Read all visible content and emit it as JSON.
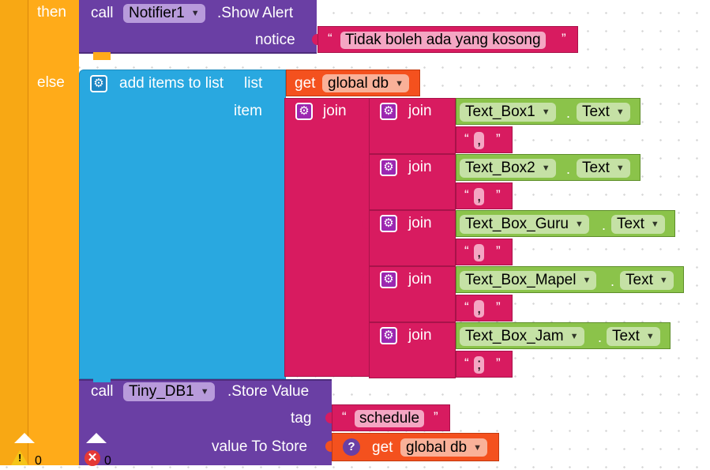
{
  "workspace": {
    "then_label": "then",
    "else_label": "else",
    "warnings_count": "0",
    "errors_count": "0"
  },
  "notifier": {
    "call_label": "call",
    "component": "Notifier1",
    "method": ".Show Alert",
    "notice_label": "notice",
    "notice_text": "Tidak boleh ada yang kosong"
  },
  "add_items": {
    "label": "add items to list",
    "list_label": "list",
    "item_label": "item",
    "get_label": "get",
    "variable": "global db"
  },
  "outer_join": {
    "label": "join"
  },
  "rows": [
    {
      "join": "join",
      "component": "Text_Box1",
      "property": "Text",
      "separator": ",",
      "dot": "."
    },
    {
      "join": "join",
      "component": "Text_Box2",
      "property": "Text",
      "separator": ",",
      "dot": "."
    },
    {
      "join": "join",
      "component": "Text_Box_Guru",
      "property": "Text",
      "separator": ",",
      "dot": "."
    },
    {
      "join": "join",
      "component": "Text_Box_Mapel",
      "property": "Text",
      "separator": ",",
      "dot": "."
    },
    {
      "join": "join",
      "component": "Text_Box_Jam",
      "property": "Text",
      "separator": ";",
      "dot": "."
    }
  ],
  "store": {
    "call_label": "call",
    "component": "Tiny_DB1",
    "method": ".Store Value",
    "tag_label": "tag",
    "tag_value": "schedule",
    "value_label": "value To Store",
    "get_label": "get",
    "variable": "global db"
  },
  "colors": {
    "control": "#ffab19",
    "component": "#6a3fa4",
    "list": "#29a8e0",
    "text": "#d81b60",
    "getter": "#f4511e",
    "property": "#8bc34a"
  }
}
